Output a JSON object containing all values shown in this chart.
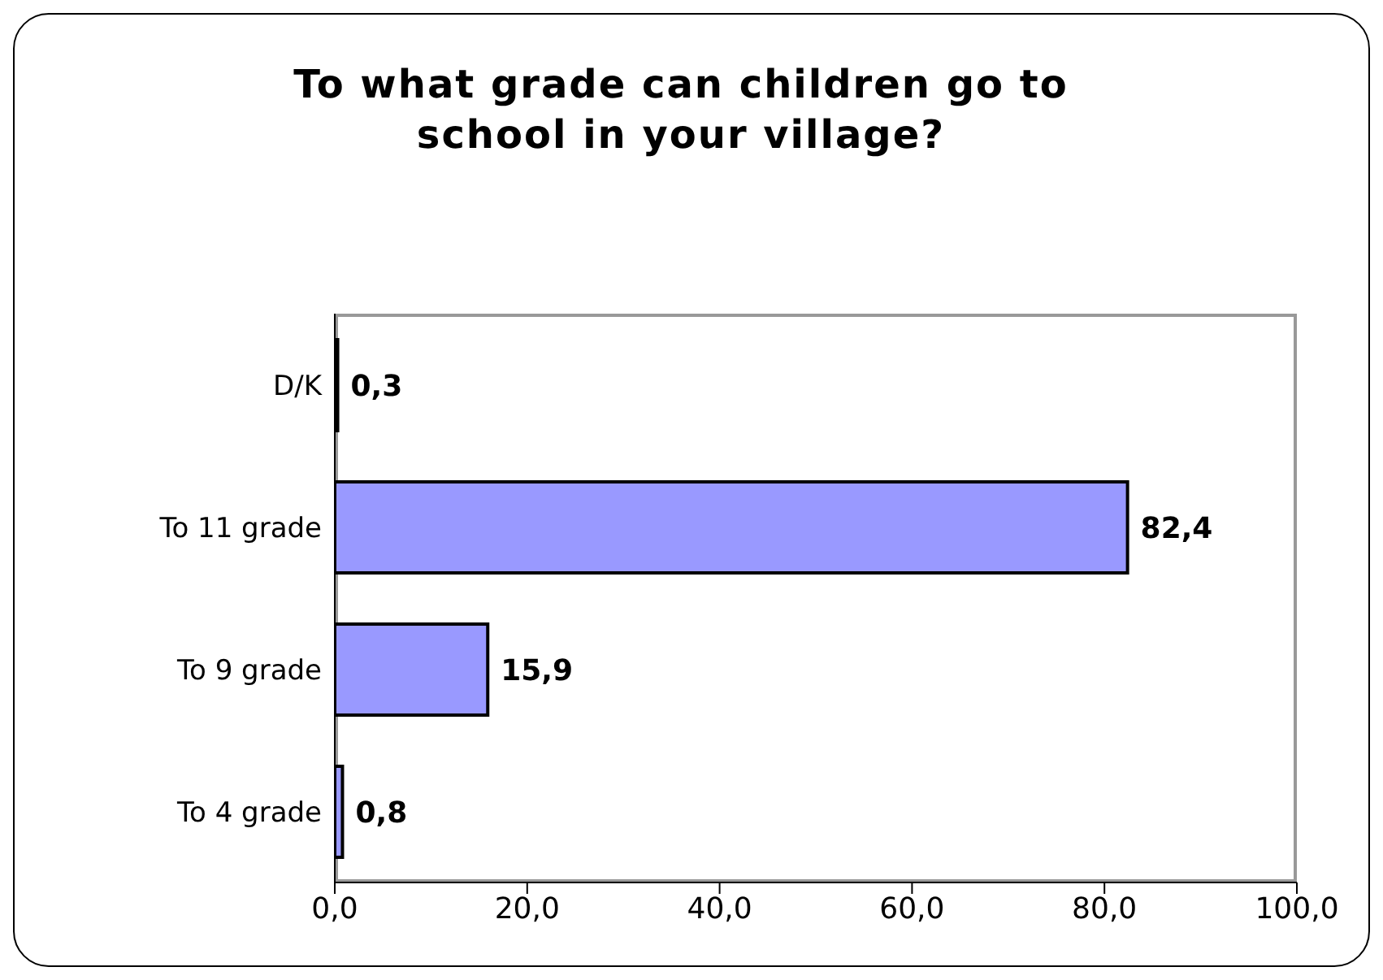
{
  "chart_data": {
    "type": "bar",
    "orientation": "horizontal",
    "title": "To what grade can children go to school in your village?",
    "categories": [
      "D/K",
      "To 11 grade",
      "To 9 grade",
      "To 4 grade"
    ],
    "values": [
      0.3,
      82.4,
      15.9,
      0.8
    ],
    "value_labels": [
      "0,3",
      "82,4",
      "15,9",
      "0,8"
    ],
    "color": "#9999ff",
    "xlim": [
      0,
      100
    ],
    "xticks": [
      {
        "value": 0,
        "label": "0,0"
      },
      {
        "value": 20,
        "label": "20,0"
      },
      {
        "value": 40,
        "label": "40,0"
      },
      {
        "value": 60,
        "label": "60,0"
      },
      {
        "value": 80,
        "label": "80,0"
      },
      {
        "value": 100,
        "label": "100,0"
      }
    ],
    "grid": false,
    "legend": false
  }
}
